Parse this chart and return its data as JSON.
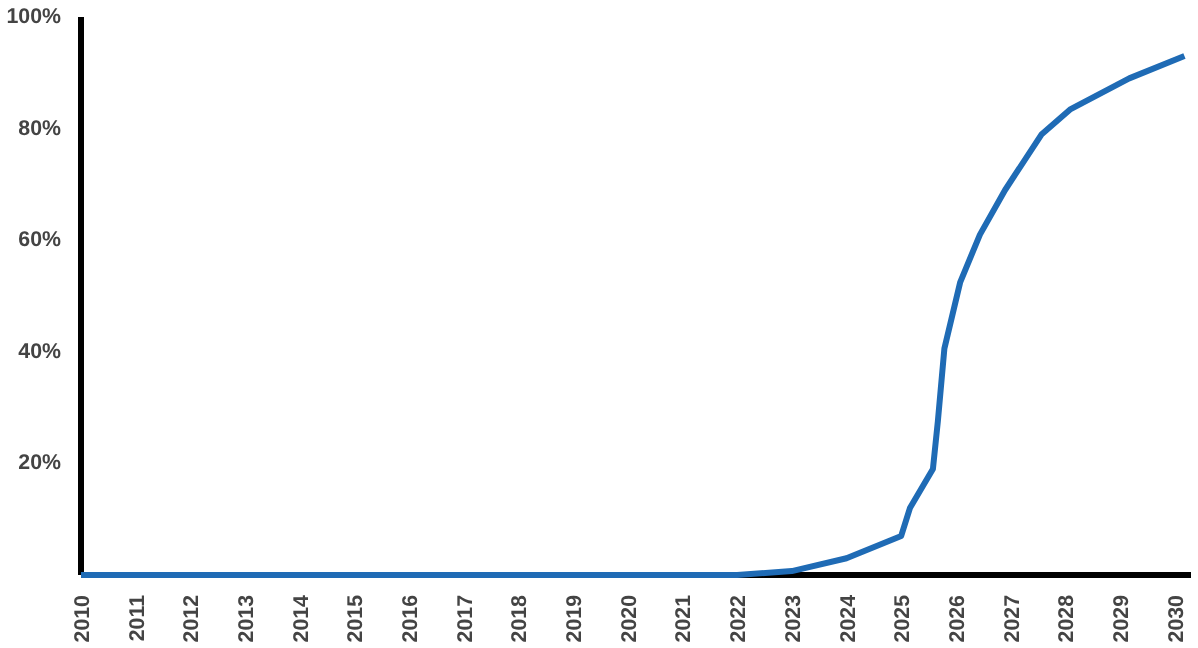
{
  "chart_data": {
    "type": "line",
    "x": [
      2010,
      2011,
      2012,
      2013,
      2014,
      2015,
      2016,
      2017,
      2018,
      2019,
      2020,
      2021,
      2022,
      2023,
      2024,
      2025,
      2025.16,
      2025.58,
      2025.67,
      2025.79,
      2026.08,
      2026.44,
      2026.9,
      2027.57,
      2028.1,
      2029.17,
      2030.18
    ],
    "series": [
      {
        "color": "#1f6bb5",
        "values": [
          0,
          0,
          0,
          0,
          0,
          0,
          0,
          0,
          0,
          0,
          0,
          0,
          0,
          0.7,
          3,
          7,
          12,
          19,
          27.5,
          40.6,
          52.5,
          61,
          69,
          79,
          83.5,
          89,
          93
        ]
      }
    ],
    "xlim": [
      2010,
      2030.3
    ],
    "xticks": [
      2010,
      2011,
      2012,
      2013,
      2014,
      2015,
      2016,
      2017,
      2018,
      2019,
      2020,
      2021,
      2022,
      2023,
      2024,
      2025,
      2026,
      2027,
      2028,
      2029,
      2030
    ],
    "ylim": [
      0,
      100
    ],
    "yticks": [
      {
        "value": 20,
        "label": "20%"
      },
      {
        "value": 40,
        "label": "40%"
      },
      {
        "value": 60,
        "label": "60%"
      },
      {
        "value": 80,
        "label": "80%"
      },
      {
        "value": 100,
        "label": "100%"
      }
    ],
    "grid": false,
    "line_style": "solid"
  }
}
